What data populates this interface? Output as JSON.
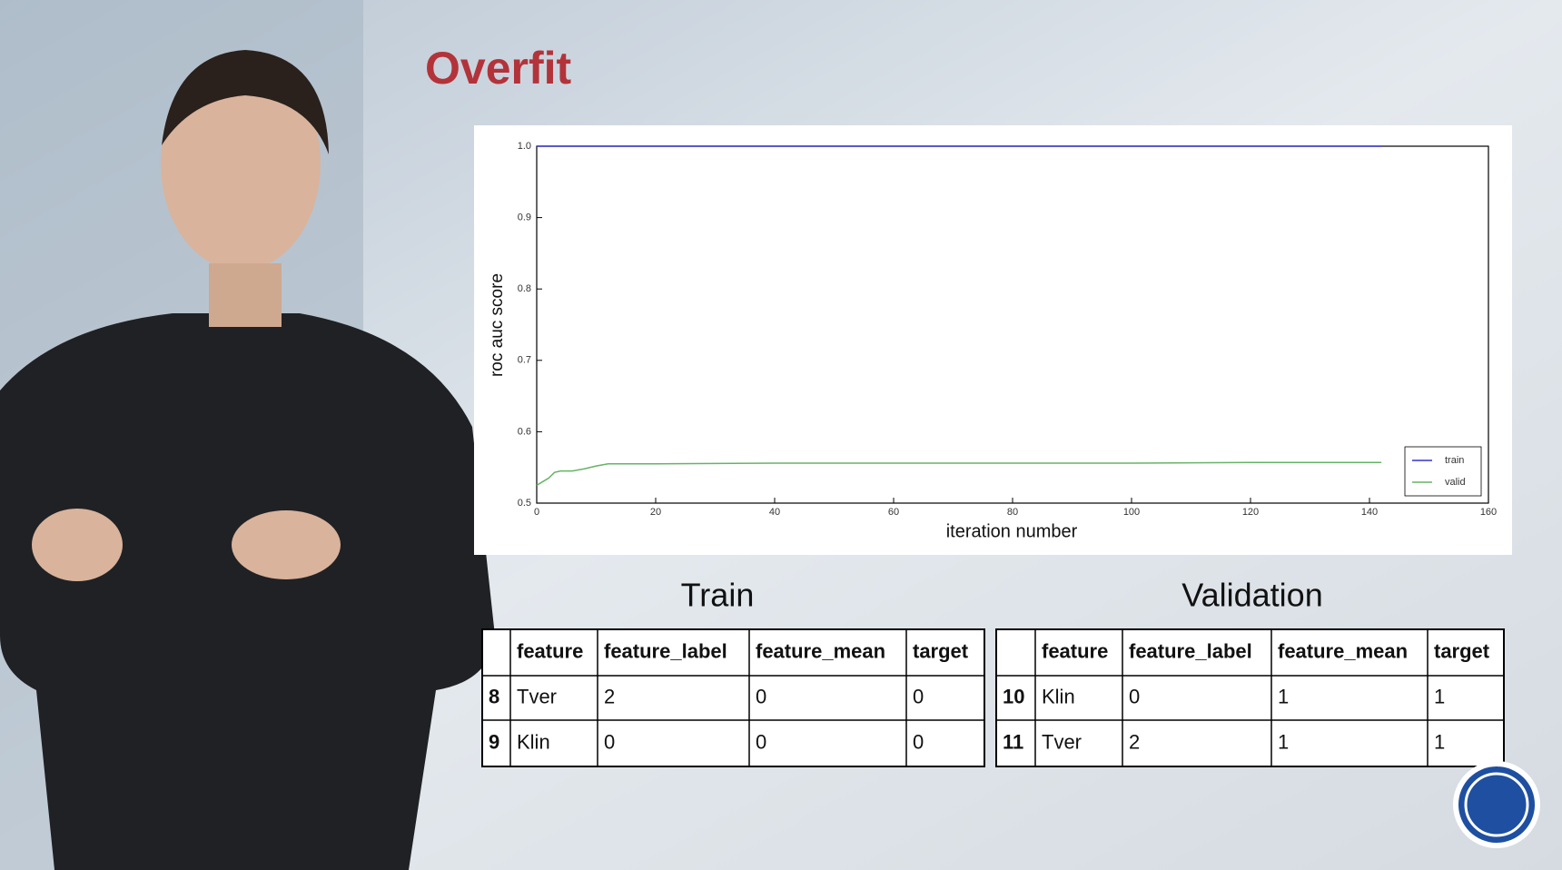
{
  "title": "Overfit",
  "chart_data": {
    "type": "line",
    "xlabel": "iteration number",
    "ylabel": "roc auc score",
    "x": [
      0,
      1,
      2,
      3,
      4,
      6,
      8,
      10,
      12,
      20,
      40,
      60,
      80,
      100,
      120,
      142
    ],
    "series": [
      {
        "name": "train",
        "color": "#3333cc",
        "values": [
          1,
          1,
          1,
          1,
          1,
          1,
          1,
          1,
          1,
          1,
          1,
          1,
          1,
          1,
          1,
          1
        ]
      },
      {
        "name": "valid",
        "color": "#66b366",
        "values": [
          0.525,
          0.53,
          0.535,
          0.543,
          0.545,
          0.545,
          0.548,
          0.552,
          0.555,
          0.555,
          0.556,
          0.556,
          0.556,
          0.556,
          0.557,
          0.557
        ]
      }
    ],
    "xlim": [
      0,
      160
    ],
    "xticks": [
      0,
      20,
      40,
      60,
      80,
      100,
      120,
      140,
      160
    ],
    "ylim": [
      0.5,
      1
    ],
    "yticks": [
      0.5,
      0.6,
      0.7,
      0.8,
      0.9,
      {
        "value": 1,
        "label": "1.0"
      }
    ],
    "legend": "lower right",
    "grid": false
  },
  "tables": [
    {
      "title": "Train",
      "columns": [
        "feature",
        "feature_label",
        "feature_mean",
        "target"
      ],
      "rows": [
        [
          8,
          "Tver",
          2,
          0,
          0
        ],
        [
          9,
          "Klin",
          0,
          0,
          0
        ]
      ]
    },
    {
      "title": "Validation",
      "columns": [
        "feature",
        "feature_label",
        "feature_mean",
        "target"
      ],
      "rows": [
        [
          10,
          "Klin",
          0,
          1,
          1
        ],
        [
          11,
          "Tver",
          2,
          1,
          1
        ]
      ]
    }
  ]
}
